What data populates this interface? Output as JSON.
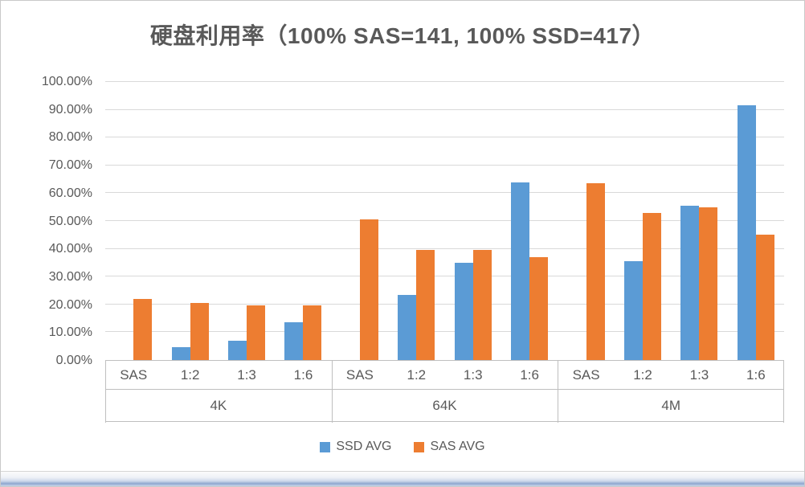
{
  "colors": {
    "ssd": "#5B9BD5",
    "sas": "#ED7D31",
    "axis_text": "#595959",
    "gridline": "#D9D9D9",
    "axis_line": "#BFBFBF"
  },
  "chart_data": {
    "type": "bar",
    "title": "硬盘利用率（100% SAS=141, 100% SSD=417）",
    "groups": [
      "4K",
      "64K",
      "4M"
    ],
    "categories": [
      "SAS",
      "1:2",
      "1:3",
      "1:6"
    ],
    "series": [
      {
        "name": "SSD AVG",
        "color": "#5B9BD5",
        "values": [
          [
            0,
            4.5,
            7,
            13.5
          ],
          [
            0,
            23.5,
            35,
            64
          ],
          [
            0,
            35.5,
            55.5,
            91.5
          ]
        ]
      },
      {
        "name": "SAS AVG",
        "color": "#ED7D31",
        "values": [
          [
            22,
            20.5,
            19.8,
            19.8
          ],
          [
            50.5,
            39.5,
            39.5,
            37
          ],
          [
            63.5,
            53,
            55,
            45
          ]
        ]
      }
    ],
    "ylim": [
      0,
      100
    ],
    "ytick_step": 10,
    "ytick_labels": [
      "100.00%",
      "90.00%",
      "80.00%",
      "70.00%",
      "60.00%",
      "50.00%",
      "40.00%",
      "30.00%",
      "20.00%",
      "10.00%",
      "0.00%"
    ],
    "grid": true,
    "legend_position": "bottom"
  }
}
